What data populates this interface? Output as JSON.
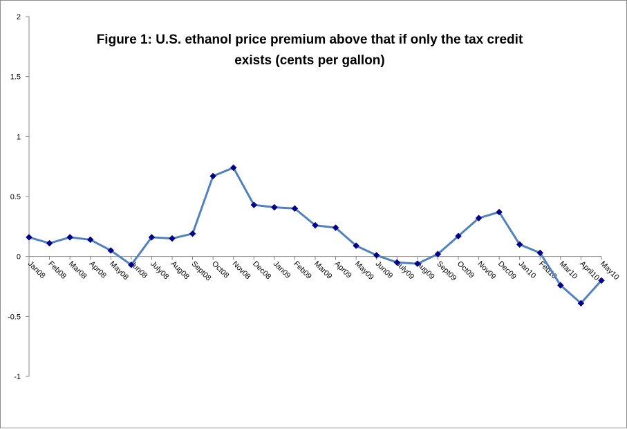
{
  "chart_data": {
    "type": "line",
    "title_lines": [
      "Figure 1: U.S. ethanol price premium above that if only the tax credit",
      "exists (cents per gallon)"
    ],
    "xlabel": "",
    "ylabel": "",
    "ylim": [
      -1,
      2
    ],
    "yticks": [
      "2",
      "1.5",
      "1",
      "0.5",
      "0",
      "-0.5",
      "-1"
    ],
    "grid": false,
    "legend": "none",
    "categories": [
      "Jan08",
      "Feb08",
      "Mar08",
      "Apr08",
      "May08",
      "Jun08",
      "July08",
      "Aug08",
      "Sept08",
      "Oct08",
      "Nov08",
      "Dec08",
      "Jan09",
      "Feb09",
      "Mar09",
      "Apr09",
      "May09",
      "Jun09",
      "July09",
      "Aug09",
      "Sept09",
      "Oct09",
      "Nov09",
      "Dec09",
      "Jan10",
      "Feb10",
      "Mar10",
      "April10",
      "May10"
    ],
    "series": [
      {
        "values": [
          0.16,
          0.11,
          0.16,
          0.14,
          0.05,
          -0.07,
          0.16,
          0.15,
          0.19,
          0.67,
          0.74,
          0.43,
          0.41,
          0.4,
          0.26,
          0.24,
          0.09,
          0.01,
          -0.05,
          -0.06,
          0.02,
          0.17,
          0.32,
          0.37,
          0.1,
          0.03,
          -0.24,
          -0.39,
          -0.2
        ],
        "color": "#4f81bd",
        "marker_color": "#00008b"
      }
    ]
  }
}
